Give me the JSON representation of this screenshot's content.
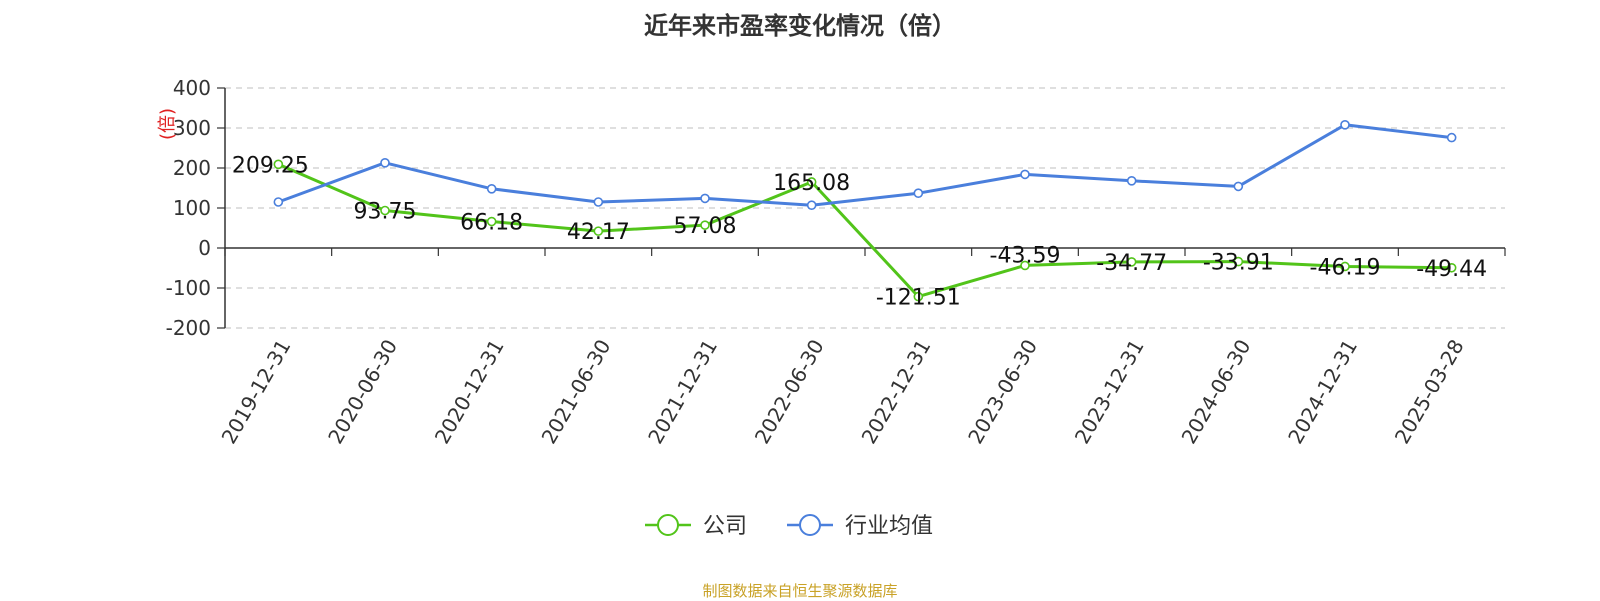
{
  "chart_data": {
    "type": "line",
    "title": "近年来市盈率变化情况（倍）",
    "ylabel": "(倍)",
    "xlabel": "",
    "ylim": [
      -200,
      400
    ],
    "yticks": [
      400,
      300,
      200,
      100,
      0,
      -100,
      -200
    ],
    "grid": true,
    "legend_position": "bottom-center",
    "categories": [
      "2019-12-31",
      "2020-06-30",
      "2020-12-31",
      "2021-06-30",
      "2021-12-31",
      "2022-06-30",
      "2022-12-31",
      "2023-06-30",
      "2023-12-31",
      "2024-06-30",
      "2024-12-31",
      "2025-03-28"
    ],
    "series": [
      {
        "name": "公司",
        "color": "#52c41a",
        "show_labels": true,
        "values": [
          209.25,
          93.75,
          66.18,
          42.17,
          57.08,
          165.08,
          -121.51,
          -43.59,
          -34.77,
          -33.91,
          -46.19,
          -49.44
        ],
        "labels": [
          "209.25",
          "93.75",
          "66.18",
          "42.17",
          "57.08",
          "165.08",
          "-121.51",
          "-43.59",
          "-34.77",
          "-33.91",
          "-46.19",
          "-49.44"
        ]
      },
      {
        "name": "行业均值",
        "color": "#4a7fdc",
        "show_labels": false,
        "values": [
          115,
          213,
          148,
          115,
          124,
          107,
          137,
          184,
          168,
          154,
          308,
          276
        ]
      }
    ]
  },
  "footer": {
    "source": "制图数据来自恒生聚源数据库"
  }
}
